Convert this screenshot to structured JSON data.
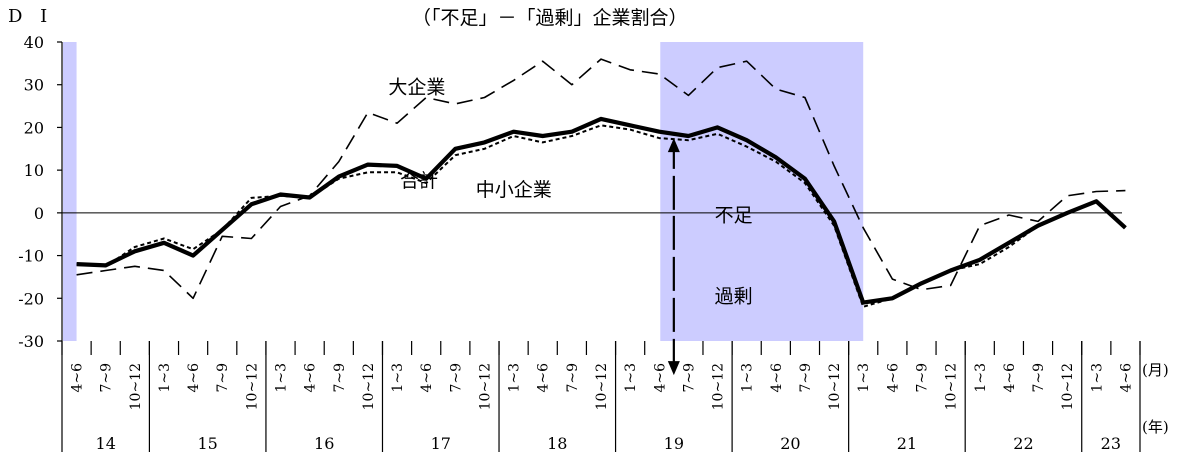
{
  "chart_data": {
    "type": "line",
    "title": "（「不足」－「過剰」企業割合）",
    "ylabel": "D I",
    "ylim": [
      -30,
      40
    ],
    "yticks": [
      40,
      30,
      20,
      10,
      0,
      -10,
      -20,
      -30
    ],
    "month_unit": "(月)",
    "year_unit": "(年)",
    "categories": [
      "4~6",
      "7~9",
      "10~12",
      "1~3",
      "4~6",
      "7~9",
      "10~12",
      "1~3",
      "4~6",
      "7~9",
      "10~12",
      "1~3",
      "4~6",
      "7~9",
      "10~12",
      "1~3",
      "4~6",
      "7~9",
      "10~12",
      "1~3",
      "4~6",
      "7~9",
      "10~12",
      "1~3",
      "4~6",
      "7~9",
      "10~12",
      "1~3",
      "4~6",
      "7~9",
      "10~12",
      "1~3",
      "4~6",
      "7~9",
      "10~12",
      "1~3",
      "4~6"
    ],
    "years": [
      {
        "label": "14",
        "start": 0,
        "span": 3
      },
      {
        "label": "15",
        "start": 3,
        "span": 4
      },
      {
        "label": "16",
        "start": 7,
        "span": 4
      },
      {
        "label": "17",
        "start": 11,
        "span": 4
      },
      {
        "label": "18",
        "start": 15,
        "span": 4
      },
      {
        "label": "19",
        "start": 19,
        "span": 4
      },
      {
        "label": "20",
        "start": 23,
        "span": 4
      },
      {
        "label": "21",
        "start": 27,
        "span": 4
      },
      {
        "label": "22",
        "start": 31,
        "span": 4
      },
      {
        "label": "23",
        "start": 35,
        "span": 2
      }
    ],
    "recession_shading": [
      [
        0,
        0.5
      ],
      [
        20.5,
        27.5
      ]
    ],
    "shade_color": "#ccccff",
    "series": [
      {
        "name": "合計",
        "style": "solid-thick",
        "values": [
          -12,
          -12.3,
          -9,
          -7,
          -10,
          -4,
          2,
          4.3,
          3.6,
          8.5,
          11.3,
          11,
          8,
          15,
          16.5,
          19,
          18,
          19,
          22,
          20.5,
          19,
          18,
          20,
          17,
          13,
          8,
          -2,
          -21,
          -20,
          -16.5,
          -13.5,
          -11,
          -7,
          -3,
          0,
          2.7,
          -3.5
        ]
      },
      {
        "name": "中小企業",
        "style": "short-dash",
        "values": [
          -12,
          -12.5,
          -8,
          -6,
          -8.5,
          -4,
          3.5,
          4,
          3.5,
          8,
          9.5,
          9.5,
          7,
          13.5,
          15,
          18,
          16.5,
          18,
          20.5,
          19.5,
          17.5,
          17,
          18.5,
          15.5,
          12,
          7,
          -3,
          -22,
          -20,
          -16.5,
          -13.5,
          -12,
          -8,
          -3,
          0,
          2.5,
          -3.5
        ]
      },
      {
        "name": "大企業",
        "style": "long-dash",
        "values": [
          -14.5,
          -13.5,
          -12.5,
          -13.5,
          -20,
          -5.5,
          -6,
          1.5,
          4,
          12,
          23.5,
          21,
          27,
          25.5,
          27,
          31,
          35.5,
          30,
          36,
          33.5,
          32.5,
          27.5,
          34,
          35.5,
          29,
          27,
          11,
          -3.5,
          -15.5,
          -18,
          -17,
          -3,
          -0.5,
          -2,
          4,
          5,
          5.2
        ]
      }
    ],
    "annotations": [
      {
        "text": "大企業",
        "x": 11.2,
        "y": 28
      },
      {
        "text": "合計",
        "x": 11.6,
        "y": 6
      },
      {
        "text": "中小企業",
        "x": 14.2,
        "y": 4
      },
      {
        "text": "不足",
        "x": 22.4,
        "y": -2
      },
      {
        "text": "過剰",
        "x": 22.4,
        "y": -21
      }
    ],
    "arrow": {
      "x": 21,
      "from_y": 0,
      "up_to": 17.5,
      "down_to": -38
    },
    "grid": false,
    "legend": "none"
  }
}
